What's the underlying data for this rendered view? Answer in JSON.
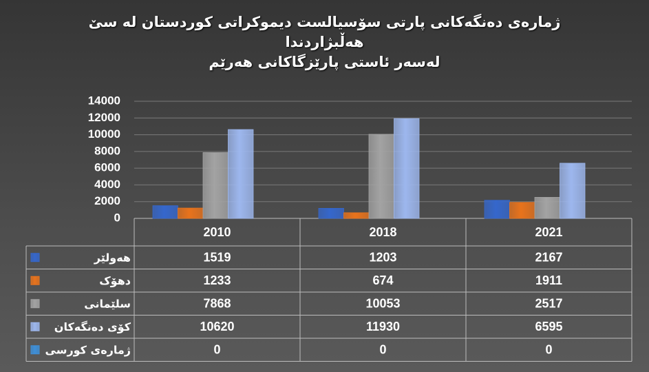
{
  "chart_data": {
    "type": "bar",
    "title": "ژمارەی دەنگەکانی پارتی سۆسیالست دیموکراتی کوردستان لە سێ هەڵبژاردندا",
    "subtitle": "لەسەر ئاستی پارێزگاکانی هەرێم",
    "categories": [
      "2010",
      "2018",
      "2021"
    ],
    "series": [
      {
        "name": "هەولێر",
        "color": "#3567cc",
        "values": [
          1519,
          1203,
          2167
        ]
      },
      {
        "name": "دهۆک",
        "color": "#e8731c",
        "values": [
          1233,
          674,
          1911
        ]
      },
      {
        "name": "سلێمانی",
        "color": "#a3a3a3",
        "values": [
          7868,
          10053,
          2517
        ]
      },
      {
        "name": "کۆی دەنگەکان",
        "color": "#9db7ee",
        "values": [
          10620,
          11930,
          6595
        ]
      },
      {
        "name": "ژمارەی کورسی",
        "color": "#3e8fd8",
        "values": [
          0,
          0,
          0
        ]
      }
    ],
    "ylim": [
      0,
      14000
    ],
    "yticks": [
      0,
      2000,
      4000,
      6000,
      8000,
      10000,
      12000,
      14000
    ],
    "grid": true
  }
}
